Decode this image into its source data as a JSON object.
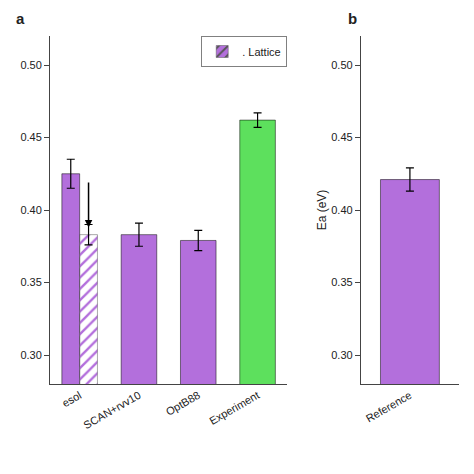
{
  "chart_data": [
    {
      "type": "bar",
      "title": "a",
      "categories": [
        "esol",
        "SCAN+rvv10",
        "OptB88",
        "Experiment"
      ],
      "series": [
        {
          "values": [
            0.425,
            0.383,
            0.379,
            0.462
          ],
          "errors": [
            0.01,
            0.008,
            0.007,
            0.005
          ],
          "colors": [
            "#b36fdc",
            "#b36fdc",
            "#b36fdc",
            "#5de05d"
          ]
        },
        {
          "name": ". Lattice",
          "values": [
            0.383,
            null,
            null,
            null
          ],
          "errors": [
            0.007,
            null,
            null,
            null
          ],
          "color": "#b36fdc",
          "marker": "hatched"
        }
      ],
      "arrow": {
        "category": "esol",
        "series": ". Lattice",
        "from": 0.42,
        "to": 0.388
      },
      "ylim": [
        0.28,
        0.52
      ],
      "yticks": [
        0.3,
        0.35,
        0.4,
        0.45,
        0.5
      ],
      "grid": false,
      "legend": "upper right"
    },
    {
      "type": "bar",
      "title": "b",
      "categories": [
        "Reference"
      ],
      "values": [
        0.421
      ],
      "errors": [
        0.008
      ],
      "color": "#b36fdc",
      "ylabel": "Ea (eV)",
      "ylim": [
        0.28,
        0.52
      ],
      "yticks": [
        0.3,
        0.35,
        0.4,
        0.45,
        0.5
      ],
      "grid": false
    }
  ]
}
